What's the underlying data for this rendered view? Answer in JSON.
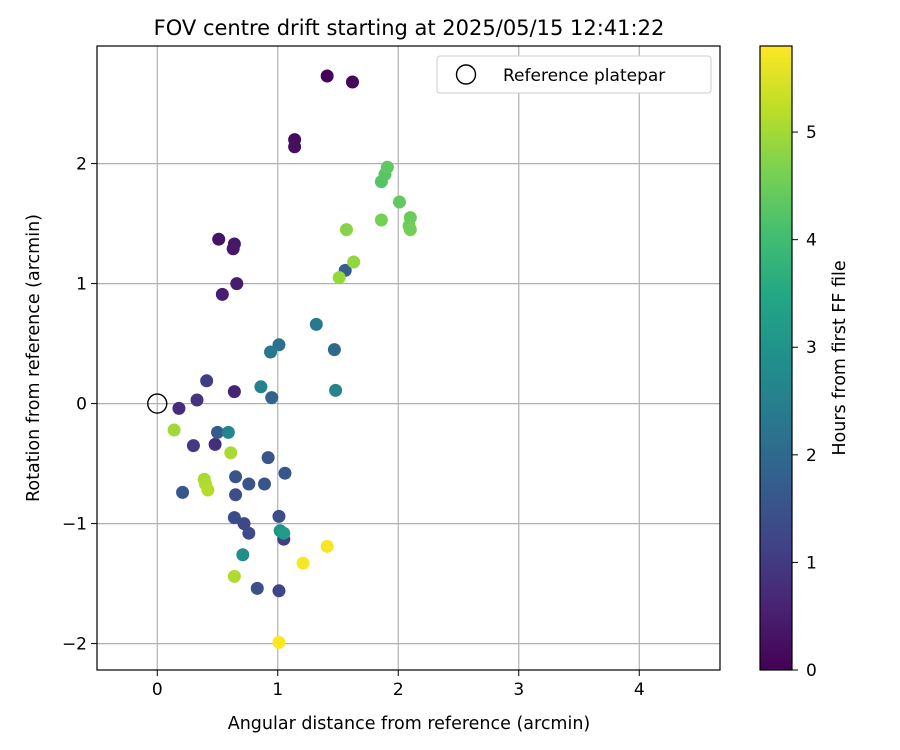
{
  "chart_data": {
    "type": "scatter",
    "title": "FOV centre drift starting at 2025/05/15 12:41:22",
    "xlabel": "Angular distance from reference (arcmin)",
    "ylabel": "Rotation from reference (arcmin)",
    "xlim": [
      -0.5,
      4.67
    ],
    "ylim": [
      -2.22,
      2.98
    ],
    "xticks": [
      0,
      1,
      2,
      3,
      4
    ],
    "yticks": [
      -2,
      -1,
      0,
      1,
      2
    ],
    "xtick_labels": [
      "0",
      "1",
      "2",
      "3",
      "4"
    ],
    "ytick_labels": [
      "−2",
      "−1",
      "0",
      "1",
      "2"
    ],
    "grid": true,
    "legend": {
      "position": "top-right",
      "label": "Reference platepar",
      "marker": "open-circle"
    },
    "reference_point": {
      "x": 0,
      "y": 0
    },
    "colorbar": {
      "label": "Hours from first FF file",
      "colormap": "viridis",
      "range": [
        0,
        5.8
      ],
      "ticks": [
        0,
        1,
        2,
        3,
        4,
        5
      ],
      "tick_labels": [
        "0",
        "1",
        "2",
        "3",
        "4",
        "5"
      ]
    },
    "points": [
      {
        "x": 1.41,
        "y": 2.73,
        "t": 0.05
      },
      {
        "x": 1.62,
        "y": 2.68,
        "t": 0.1
      },
      {
        "x": 1.14,
        "y": 2.2,
        "t": 0.2
      },
      {
        "x": 1.14,
        "y": 2.14,
        "t": 0.25
      },
      {
        "x": 0.51,
        "y": 1.37,
        "t": 0.3
      },
      {
        "x": 0.64,
        "y": 1.33,
        "t": 0.35
      },
      {
        "x": 0.63,
        "y": 1.29,
        "t": 0.4
      },
      {
        "x": 0.66,
        "y": 1.0,
        "t": 0.45
      },
      {
        "x": 0.54,
        "y": 0.91,
        "t": 0.5
      },
      {
        "x": 0.64,
        "y": 0.1,
        "t": 0.6
      },
      {
        "x": 0.18,
        "y": -0.04,
        "t": 0.75
      },
      {
        "x": 0.48,
        "y": -0.34,
        "t": 0.8
      },
      {
        "x": 0.33,
        "y": 0.03,
        "t": 0.9
      },
      {
        "x": 0.3,
        "y": -0.35,
        "t": 1.0
      },
      {
        "x": 0.41,
        "y": 0.19,
        "t": 1.05
      },
      {
        "x": 1.05,
        "y": -1.13,
        "t": 1.1
      },
      {
        "x": 1.01,
        "y": -1.56,
        "t": 1.2
      },
      {
        "x": 0.72,
        "y": -1.0,
        "t": 1.25
      },
      {
        "x": 0.76,
        "y": -1.08,
        "t": 1.3
      },
      {
        "x": 0.64,
        "y": -0.95,
        "t": 1.35
      },
      {
        "x": 0.65,
        "y": -0.76,
        "t": 1.4
      },
      {
        "x": 1.01,
        "y": -0.94,
        "t": 1.4
      },
      {
        "x": 0.83,
        "y": -1.54,
        "t": 1.45
      },
      {
        "x": 0.65,
        "y": -0.61,
        "t": 1.5
      },
      {
        "x": 0.76,
        "y": -0.67,
        "t": 1.5
      },
      {
        "x": 0.89,
        "y": -0.67,
        "t": 1.55
      },
      {
        "x": 0.92,
        "y": -0.45,
        "t": 1.55
      },
      {
        "x": 1.06,
        "y": -0.58,
        "t": 1.6
      },
      {
        "x": 0.21,
        "y": -0.74,
        "t": 1.6
      },
      {
        "x": 0.5,
        "y": -0.24,
        "t": 1.7
      },
      {
        "x": 1.56,
        "y": 1.11,
        "t": 1.75
      },
      {
        "x": 0.95,
        "y": 0.05,
        "t": 1.85
      },
      {
        "x": 1.47,
        "y": 0.45,
        "t": 2.0
      },
      {
        "x": 1.01,
        "y": 0.49,
        "t": 2.15
      },
      {
        "x": 0.94,
        "y": 0.43,
        "t": 2.3
      },
      {
        "x": 1.32,
        "y": 0.66,
        "t": 2.35
      },
      {
        "x": 0.86,
        "y": 0.14,
        "t": 2.55
      },
      {
        "x": 1.48,
        "y": 0.11,
        "t": 2.6
      },
      {
        "x": 0.59,
        "y": -0.24,
        "t": 2.65
      },
      {
        "x": 0.71,
        "y": -1.26,
        "t": 2.85
      },
      {
        "x": 1.02,
        "y": -1.06,
        "t": 3.0
      },
      {
        "x": 1.05,
        "y": -1.08,
        "t": 3.2
      },
      {
        "x": 1.86,
        "y": 1.85,
        "t": 4.25
      },
      {
        "x": 1.89,
        "y": 1.91,
        "t": 4.3
      },
      {
        "x": 1.91,
        "y": 1.97,
        "t": 4.35
      },
      {
        "x": 2.01,
        "y": 1.68,
        "t": 4.4
      },
      {
        "x": 2.1,
        "y": 1.55,
        "t": 4.45
      },
      {
        "x": 2.09,
        "y": 1.48,
        "t": 4.5
      },
      {
        "x": 2.1,
        "y": 1.45,
        "t": 4.55
      },
      {
        "x": 1.86,
        "y": 1.53,
        "t": 4.6
      },
      {
        "x": 1.57,
        "y": 1.45,
        "t": 4.75
      },
      {
        "x": 1.63,
        "y": 1.18,
        "t": 4.85
      },
      {
        "x": 1.51,
        "y": 1.05,
        "t": 4.9
      },
      {
        "x": 0.14,
        "y": -0.22,
        "t": 5.0
      },
      {
        "x": 0.39,
        "y": -0.63,
        "t": 5.05
      },
      {
        "x": 0.61,
        "y": -0.41,
        "t": 5.05
      },
      {
        "x": 0.4,
        "y": -0.67,
        "t": 5.1
      },
      {
        "x": 0.42,
        "y": -0.72,
        "t": 5.15
      },
      {
        "x": 0.64,
        "y": -1.44,
        "t": 5.1
      },
      {
        "x": 1.41,
        "y": -1.19,
        "t": 5.75
      },
      {
        "x": 1.21,
        "y": -1.33,
        "t": 5.75
      },
      {
        "x": 1.01,
        "y": -1.99,
        "t": 5.8
      }
    ]
  }
}
